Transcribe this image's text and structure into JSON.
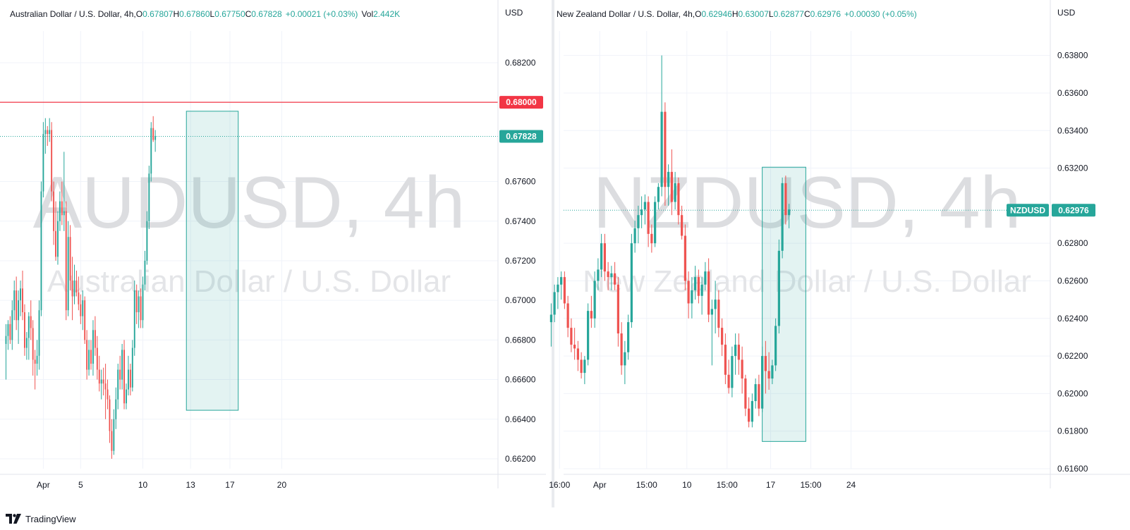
{
  "footer": {
    "brand": "TradingView",
    "logo_icon": "tradingview-logo-icon"
  },
  "chart_data": [
    {
      "id": "left",
      "type": "candlestick",
      "header": {
        "name": "Australian Dollar / U.S. Dollar, 4h,",
        "o_label": "O",
        "o": "0.67807",
        "h_label": "H",
        "h": "0.67860",
        "l_label": "L",
        "l": "0.67750",
        "c_label": "C",
        "c": "0.67828",
        "change": "+0.00021 (+0.03%)",
        "vol_label": "Vol",
        "vol": "2.442K"
      },
      "currency": "USD",
      "watermark_symbol": "AUDUSD, 4h",
      "watermark_name": "Australian Dollar / U.S. Dollar",
      "ylim": [
        0.6615,
        0.6836
      ],
      "y_ticks": [
        "0.68200",
        "0.67600",
        "0.67400",
        "0.67200",
        "0.67000",
        "0.66800",
        "0.66600",
        "0.66400",
        "0.66200"
      ],
      "x_ticks": [
        {
          "label": "Apr",
          "at": 18
        },
        {
          "label": "5",
          "at": 36
        },
        {
          "label": "10",
          "at": 66
        },
        {
          "label": "13",
          "at": 89
        },
        {
          "label": "17",
          "at": 108
        },
        {
          "label": "20",
          "at": 133
        }
      ],
      "candles": [
        [
          0.6678,
          0.6688,
          0.666,
          0.6682
        ],
        [
          0.6682,
          0.669,
          0.6675,
          0.6688
        ],
        [
          0.6688,
          0.6692,
          0.6678,
          0.668
        ],
        [
          0.668,
          0.67,
          0.6675,
          0.6695
        ],
        [
          0.6695,
          0.671,
          0.669,
          0.6705
        ],
        [
          0.6705,
          0.6712,
          0.6685,
          0.669
        ],
        [
          0.669,
          0.6705,
          0.6678,
          0.67
        ],
        [
          0.67,
          0.671,
          0.6692,
          0.6706
        ],
        [
          0.6706,
          0.6715,
          0.669,
          0.6694
        ],
        [
          0.6694,
          0.6698,
          0.6672,
          0.6676
        ],
        [
          0.6676,
          0.6684,
          0.667,
          0.6681
        ],
        [
          0.6681,
          0.6694,
          0.667,
          0.6692
        ],
        [
          0.6692,
          0.67,
          0.668,
          0.6686
        ],
        [
          0.6686,
          0.669,
          0.6662,
          0.667
        ],
        [
          0.667,
          0.6675,
          0.6655,
          0.6668
        ],
        [
          0.6668,
          0.668,
          0.6662,
          0.6672
        ],
        [
          0.6672,
          0.67,
          0.6665,
          0.6695
        ],
        [
          0.6695,
          0.676,
          0.6692,
          0.6755
        ],
        [
          0.6755,
          0.679,
          0.6752,
          0.6784
        ],
        [
          0.6784,
          0.6792,
          0.6774,
          0.6786
        ],
        [
          0.6786,
          0.6788,
          0.6778,
          0.6784
        ],
        [
          0.6784,
          0.6792,
          0.678,
          0.6786
        ],
        [
          0.6786,
          0.679,
          0.675,
          0.6755
        ],
        [
          0.6755,
          0.676,
          0.6728,
          0.6735
        ],
        [
          0.6735,
          0.675,
          0.672,
          0.6722
        ],
        [
          0.6722,
          0.6745,
          0.6718,
          0.674
        ],
        [
          0.674,
          0.6755,
          0.6735,
          0.675
        ],
        [
          0.675,
          0.676,
          0.6738,
          0.6743
        ],
        [
          0.6743,
          0.6775,
          0.6735,
          0.6745
        ],
        [
          0.6745,
          0.675,
          0.669,
          0.6695
        ],
        [
          0.6695,
          0.674,
          0.6692,
          0.6732
        ],
        [
          0.6732,
          0.6738,
          0.6705,
          0.671
        ],
        [
          0.671,
          0.6722,
          0.669,
          0.6702
        ],
        [
          0.6702,
          0.6718,
          0.6698,
          0.671
        ],
        [
          0.671,
          0.6715,
          0.6702,
          0.6704
        ],
        [
          0.6704,
          0.6712,
          0.6695,
          0.6698
        ],
        [
          0.6698,
          0.6703,
          0.6688,
          0.6692
        ],
        [
          0.6692,
          0.6705,
          0.6685,
          0.67
        ],
        [
          0.67,
          0.6702,
          0.6678,
          0.668
        ],
        [
          0.668,
          0.6685,
          0.666,
          0.6665
        ],
        [
          0.6665,
          0.668,
          0.6662,
          0.6675
        ],
        [
          0.6675,
          0.668,
          0.6665,
          0.6668
        ],
        [
          0.6668,
          0.669,
          0.6662,
          0.6685
        ],
        [
          0.6685,
          0.6692,
          0.6672,
          0.6676
        ],
        [
          0.6676,
          0.6682,
          0.666,
          0.6665
        ],
        [
          0.6665,
          0.6672,
          0.6654,
          0.6658
        ],
        [
          0.6658,
          0.6665,
          0.665,
          0.666
        ],
        [
          0.666,
          0.6666,
          0.6652,
          0.6658
        ],
        [
          0.6658,
          0.6668,
          0.664,
          0.6655
        ],
        [
          0.6655,
          0.666,
          0.6645,
          0.665
        ],
        [
          0.665,
          0.6652,
          0.6628,
          0.6634
        ],
        [
          0.6634,
          0.664,
          0.662,
          0.6624
        ],
        [
          0.6624,
          0.6645,
          0.6622,
          0.664
        ],
        [
          0.664,
          0.6656,
          0.6635,
          0.665
        ],
        [
          0.665,
          0.6668,
          0.6645,
          0.6665
        ],
        [
          0.6665,
          0.6672,
          0.6655,
          0.666
        ],
        [
          0.666,
          0.6678,
          0.6655,
          0.6675
        ],
        [
          0.6675,
          0.668,
          0.6645,
          0.6648
        ],
        [
          0.6648,
          0.6658,
          0.6645,
          0.6655
        ],
        [
          0.6655,
          0.6672,
          0.6652,
          0.6665
        ],
        [
          0.6665,
          0.6668,
          0.6652,
          0.6656
        ],
        [
          0.6656,
          0.668,
          0.6654,
          0.6676
        ],
        [
          0.6676,
          0.671,
          0.6672,
          0.6705
        ],
        [
          0.6705,
          0.6708,
          0.6688,
          0.6694
        ],
        [
          0.6694,
          0.6705,
          0.6686,
          0.6702
        ],
        [
          0.6702,
          0.6706,
          0.6686,
          0.669
        ],
        [
          0.669,
          0.6712,
          0.6686,
          0.6708
        ],
        [
          0.6708,
          0.6725,
          0.6705,
          0.672
        ],
        [
          0.672,
          0.6745,
          0.6718,
          0.674
        ],
        [
          0.674,
          0.6768,
          0.6736,
          0.6764
        ],
        [
          0.6764,
          0.679,
          0.676,
          0.6787
        ],
        [
          0.6787,
          0.6793,
          0.678,
          0.6781
        ],
        [
          0.6781,
          0.6786,
          0.6775,
          0.6783
        ]
      ],
      "horizontal_line": {
        "value": 0.68,
        "label": "0.68000",
        "color": "#f23645"
      },
      "last_price": {
        "value": 0.67828,
        "label": "0.67828",
        "color": "#26a69a"
      },
      "highlight_box": {
        "x_start": 87.5,
        "x_end": 112.5,
        "y_low": 0.66445,
        "y_high": 0.67955
      }
    },
    {
      "id": "right",
      "type": "candlestick",
      "header": {
        "name": "New Zealand Dollar / U.S. Dollar, 4h,",
        "o_label": "O",
        "o": "0.62946",
        "h_label": "H",
        "h": "0.63007",
        "l_label": "L",
        "l": "0.62877",
        "c_label": "C",
        "c": "0.62976",
        "change": "+0.00030 (+0.05%)"
      },
      "currency": "USD",
      "watermark_symbol": "NZDUSD, 4h",
      "watermark_name": "New Zealand Dollar / U.S. Dollar",
      "ylim": [
        0.616,
        0.6393
      ],
      "y_ticks": [
        "0.63800",
        "0.63600",
        "0.63400",
        "0.63200",
        "0.62800",
        "0.62600",
        "0.62400",
        "0.62200",
        "0.62000",
        "0.61800",
        "0.61600"
      ],
      "x_ticks": [
        {
          "label": "16:00",
          "at": 2.5
        },
        {
          "label": "Apr",
          "at": 14.5
        },
        {
          "label": "15:00",
          "at": 28.5
        },
        {
          "label": "10",
          "at": 40.5
        },
        {
          "label": "15:00",
          "at": 52.5
        },
        {
          "label": "17",
          "at": 65.5
        },
        {
          "label": "15:00",
          "at": 77.5
        },
        {
          "label": "24",
          "at": 89.5
        }
      ],
      "candles": [
        [
          0.6238,
          0.6248,
          0.6225,
          0.6242
        ],
        [
          0.6242,
          0.6258,
          0.6238,
          0.6254
        ],
        [
          0.6254,
          0.6262,
          0.6245,
          0.6258
        ],
        [
          0.6258,
          0.6265,
          0.625,
          0.6262
        ],
        [
          0.6262,
          0.6265,
          0.6245,
          0.6248
        ],
        [
          0.6248,
          0.6252,
          0.623,
          0.6235
        ],
        [
          0.6235,
          0.624,
          0.6222,
          0.6226
        ],
        [
          0.6226,
          0.6235,
          0.6218,
          0.6224
        ],
        [
          0.6224,
          0.6228,
          0.6212,
          0.6218
        ],
        [
          0.6218,
          0.6222,
          0.6208,
          0.6211
        ],
        [
          0.6211,
          0.622,
          0.6205,
          0.6218
        ],
        [
          0.6218,
          0.6248,
          0.6215,
          0.6244
        ],
        [
          0.6244,
          0.6252,
          0.6235,
          0.624
        ],
        [
          0.624,
          0.6265,
          0.6235,
          0.626
        ],
        [
          0.626,
          0.6272,
          0.6255,
          0.6266
        ],
        [
          0.6266,
          0.6285,
          0.6262,
          0.628
        ],
        [
          0.628,
          0.6285,
          0.626,
          0.6265
        ],
        [
          0.6265,
          0.627,
          0.6255,
          0.6262
        ],
        [
          0.6262,
          0.6268,
          0.6255,
          0.6264
        ],
        [
          0.6264,
          0.627,
          0.6255,
          0.6258
        ],
        [
          0.6258,
          0.6262,
          0.6225,
          0.6232
        ],
        [
          0.6232,
          0.6238,
          0.621,
          0.6215
        ],
        [
          0.6215,
          0.6228,
          0.6205,
          0.6222
        ],
        [
          0.6222,
          0.6242,
          0.6218,
          0.6238
        ],
        [
          0.6238,
          0.6285,
          0.6235,
          0.628
        ],
        [
          0.628,
          0.6292,
          0.6275,
          0.6288
        ],
        [
          0.6288,
          0.63,
          0.628,
          0.6295
        ],
        [
          0.6295,
          0.6305,
          0.6288,
          0.6298
        ],
        [
          0.6298,
          0.6306,
          0.629,
          0.6302
        ],
        [
          0.6302,
          0.6305,
          0.6278,
          0.6285
        ],
        [
          0.6285,
          0.629,
          0.6275,
          0.628
        ],
        [
          0.628,
          0.6305,
          0.6278,
          0.6302
        ],
        [
          0.6302,
          0.6312,
          0.6298,
          0.631
        ],
        [
          0.631,
          0.638,
          0.6305,
          0.635
        ],
        [
          0.635,
          0.6355,
          0.63,
          0.631
        ],
        [
          0.631,
          0.6322,
          0.63,
          0.6318
        ],
        [
          0.6318,
          0.633,
          0.6295,
          0.6302
        ],
        [
          0.6302,
          0.6318,
          0.6298,
          0.6312
        ],
        [
          0.6312,
          0.6315,
          0.629,
          0.6295
        ],
        [
          0.6295,
          0.63,
          0.6282,
          0.6284
        ],
        [
          0.6284,
          0.629,
          0.6255,
          0.626
        ],
        [
          0.626,
          0.6265,
          0.624,
          0.6248
        ],
        [
          0.6248,
          0.6262,
          0.624,
          0.6255
        ],
        [
          0.6255,
          0.6268,
          0.625,
          0.6262
        ],
        [
          0.6262,
          0.6266,
          0.6248,
          0.6252
        ],
        [
          0.6252,
          0.6262,
          0.6242,
          0.6258
        ],
        [
          0.6258,
          0.627,
          0.6255,
          0.6265
        ],
        [
          0.6265,
          0.6272,
          0.6238,
          0.6242
        ],
        [
          0.6242,
          0.625,
          0.6215,
          0.6245
        ],
        [
          0.6245,
          0.626,
          0.6232,
          0.625
        ],
        [
          0.625,
          0.6255,
          0.623,
          0.6235
        ],
        [
          0.6235,
          0.624,
          0.622,
          0.6226
        ],
        [
          0.6226,
          0.6232,
          0.6205,
          0.621
        ],
        [
          0.621,
          0.6218,
          0.62,
          0.6203
        ],
        [
          0.6203,
          0.6225,
          0.6198,
          0.622
        ],
        [
          0.622,
          0.6232,
          0.621,
          0.6226
        ],
        [
          0.6226,
          0.6232,
          0.621,
          0.6218
        ],
        [
          0.6218,
          0.6225,
          0.62,
          0.6208
        ],
        [
          0.6208,
          0.621,
          0.6188,
          0.6192
        ],
        [
          0.6192,
          0.6198,
          0.6182,
          0.6185
        ],
        [
          0.6185,
          0.62,
          0.6182,
          0.6196
        ],
        [
          0.6196,
          0.6208,
          0.6192,
          0.6205
        ],
        [
          0.6205,
          0.621,
          0.6188,
          0.6192
        ],
        [
          0.6192,
          0.6225,
          0.619,
          0.622
        ],
        [
          0.622,
          0.6228,
          0.62,
          0.6212
        ],
        [
          0.6212,
          0.6222,
          0.6202,
          0.6208
        ],
        [
          0.6208,
          0.6218,
          0.6205,
          0.6215
        ],
        [
          0.6215,
          0.624,
          0.6212,
          0.6236
        ],
        [
          0.6236,
          0.6282,
          0.6232,
          0.6276
        ],
        [
          0.6276,
          0.6315,
          0.6272,
          0.6312
        ],
        [
          0.6312,
          0.6316,
          0.629,
          0.6295
        ],
        [
          0.6295,
          0.6301,
          0.6288,
          0.6298
        ]
      ],
      "symbol_tag": {
        "label": "NZDUSD",
        "color": "#26a69a"
      },
      "last_price": {
        "value": 0.62976,
        "label": "0.62976",
        "color": "#26a69a"
      },
      "highlight_box": {
        "x_start": 63.5,
        "x_end": 76.5,
        "y_low": 0.61745,
        "y_high": 0.63205
      }
    }
  ]
}
